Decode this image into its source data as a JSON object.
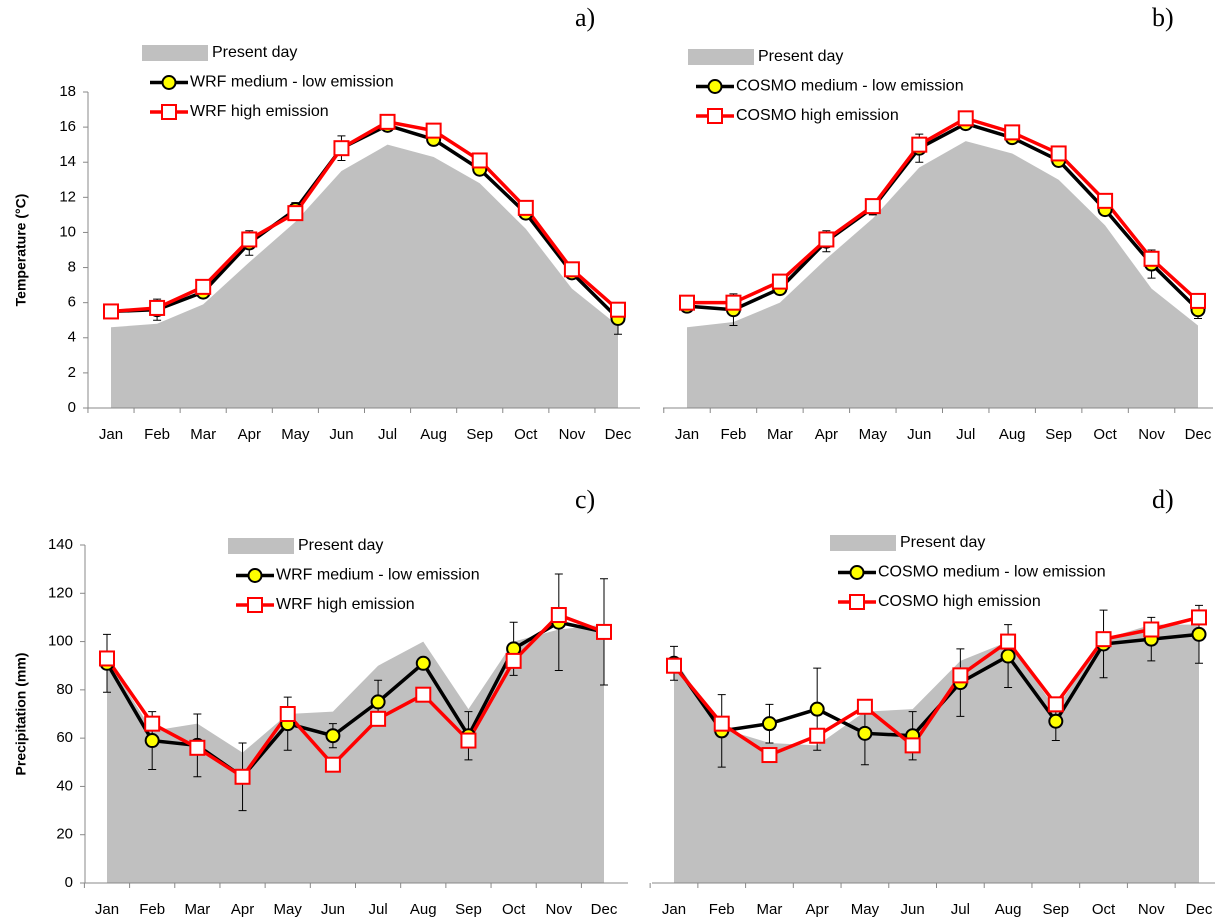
{
  "chart_data": [
    {
      "type": "line",
      "title": "a)",
      "y_label": "Temperature (°C)",
      "categories": [
        "Jan",
        "Feb",
        "Mar",
        "Apr",
        "May",
        "Jun",
        "Jul",
        "Aug",
        "Sep",
        "Oct",
        "Nov",
        "Dec"
      ],
      "ylim": [
        0,
        18
      ],
      "yticks": [
        0,
        2,
        4,
        6,
        8,
        10,
        12,
        14,
        16,
        18
      ],
      "series": [
        {
          "name": "Present day",
          "color": "#c0c0c0",
          "area": true,
          "values": [
            4.6,
            4.8,
            5.9,
            8.3,
            10.6,
            13.5,
            15.0,
            14.3,
            12.8,
            10.2,
            6.8,
            4.7
          ]
        },
        {
          "name": "WRF medium - low emission",
          "color": "#000000",
          "marker": "circle",
          "marker_fill": "#ffff00",
          "values": [
            5.5,
            5.6,
            6.6,
            9.4,
            11.3,
            14.8,
            16.1,
            15.3,
            13.6,
            11.1,
            7.7,
            5.1
          ],
          "errors": [
            0.2,
            0.6,
            0.2,
            0.7,
            0.4,
            0.7,
            0.3,
            0.3,
            0.3,
            0.3,
            0.3,
            0.9
          ]
        },
        {
          "name": "WRF high emission",
          "color": "#ff0000",
          "marker": "square",
          "marker_fill": "#ffffff",
          "values": [
            5.5,
            5.7,
            6.9,
            9.6,
            11.1,
            14.8,
            16.3,
            15.8,
            14.1,
            11.4,
            7.9,
            5.6
          ]
        }
      ]
    },
    {
      "type": "line",
      "title": "b)",
      "categories": [
        "Jan",
        "Feb",
        "Mar",
        "Apr",
        "May",
        "Jun",
        "Jul",
        "Aug",
        "Sep",
        "Oct",
        "Nov",
        "Dec"
      ],
      "ylim": [
        0,
        18
      ],
      "series": [
        {
          "name": "Present day",
          "color": "#c0c0c0",
          "area": true,
          "values": [
            4.6,
            4.9,
            6.0,
            8.5,
            10.8,
            13.7,
            15.2,
            14.5,
            13.0,
            10.4,
            6.8,
            4.7
          ]
        },
        {
          "name": "COSMO medium - low emission",
          "color": "#000000",
          "marker": "circle",
          "marker_fill": "#ffff00",
          "values": [
            5.8,
            5.6,
            6.8,
            9.5,
            11.4,
            14.8,
            16.2,
            15.4,
            14.1,
            11.3,
            8.2,
            5.6
          ],
          "errors": [
            0.2,
            0.9,
            0.3,
            0.6,
            0.4,
            0.8,
            0.3,
            0.3,
            0.3,
            0.3,
            0.8,
            0.5
          ]
        },
        {
          "name": "COSMO high emission",
          "color": "#ff0000",
          "marker": "square",
          "marker_fill": "#ffffff",
          "values": [
            6.0,
            6.0,
            7.2,
            9.6,
            11.5,
            15.0,
            16.5,
            15.7,
            14.5,
            11.8,
            8.5,
            6.1
          ]
        }
      ]
    },
    {
      "type": "line",
      "title": "c)",
      "y_label": "Precipitation (mm)",
      "categories": [
        "Jan",
        "Feb",
        "Mar",
        "Apr",
        "May",
        "Jun",
        "Jul",
        "Aug",
        "Sep",
        "Oct",
        "Nov",
        "Dec"
      ],
      "ylim": [
        0,
        140
      ],
      "yticks": [
        0,
        20,
        40,
        60,
        80,
        100,
        120,
        140
      ],
      "series": [
        {
          "name": "Present day",
          "color": "#c0c0c0",
          "area": true,
          "values": [
            93,
            63,
            66,
            54,
            70,
            71,
            90,
            100,
            72,
            100,
            105,
            107
          ]
        },
        {
          "name": "WRF medium - low emission",
          "color": "#000000",
          "marker": "circle",
          "marker_fill": "#ffff00",
          "values": [
            91,
            59,
            57,
            44,
            66,
            61,
            75,
            91,
            61,
            97,
            108,
            104
          ],
          "errors": [
            12,
            12,
            13,
            14,
            11,
            5,
            9,
            0,
            10,
            11,
            20,
            22
          ]
        },
        {
          "name": "WRF high emission",
          "color": "#ff0000",
          "marker": "square",
          "marker_fill": "#ffffff",
          "values": [
            93,
            66,
            56,
            44,
            70,
            49,
            68,
            78,
            59,
            92,
            111,
            104
          ]
        }
      ]
    },
    {
      "type": "line",
      "title": "d)",
      "categories": [
        "Jan",
        "Feb",
        "Mar",
        "Apr",
        "May",
        "Jun",
        "Jul",
        "Aug",
        "Sep",
        "Oct",
        "Nov",
        "Dec"
      ],
      "ylim": [
        0,
        140
      ],
      "series": [
        {
          "name": "Present day",
          "color": "#c0c0c0",
          "area": true,
          "values": [
            93,
            64,
            58,
            57,
            71,
            72,
            92,
            100,
            72,
            101,
            107,
            107
          ]
        },
        {
          "name": "COSMO medium - low emission",
          "color": "#000000",
          "marker": "circle",
          "marker_fill": "#ffff00",
          "values": [
            91,
            63,
            66,
            72,
            62,
            61,
            83,
            94,
            67,
            99,
            101,
            103
          ],
          "errors": [
            7,
            15,
            8,
            17,
            13,
            10,
            14,
            13,
            8,
            14,
            9,
            12
          ]
        },
        {
          "name": "COSMO high emission",
          "color": "#ff0000",
          "marker": "square",
          "marker_fill": "#ffffff",
          "values": [
            90,
            66,
            53,
            61,
            73,
            57,
            86,
            100,
            74,
            101,
            105,
            110
          ]
        }
      ]
    }
  ]
}
